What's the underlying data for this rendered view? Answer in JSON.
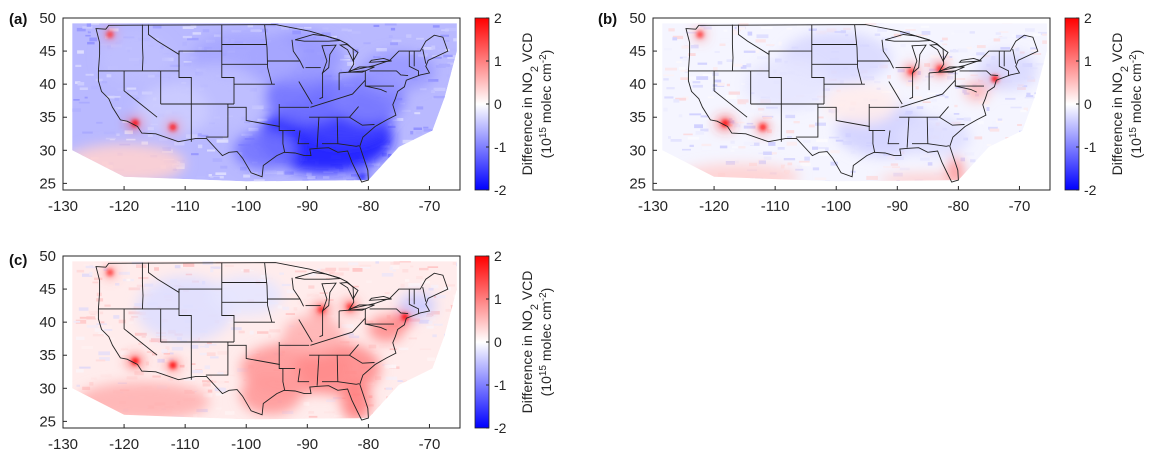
{
  "colorbar": {
    "ticks": [
      "2",
      "1",
      "0",
      "-1",
      "-2"
    ],
    "values": [
      2,
      1,
      0,
      -1,
      -2
    ],
    "range": [
      -2,
      2
    ],
    "label_line1": "Difference in NO",
    "label_line1_sub": "2",
    "label_line1_tail": " VCD",
    "label_line2_pre": "(10",
    "label_line2_sup": "15",
    "label_line2_mid": " molec cm",
    "label_line2_sup2": "-2",
    "label_line2_tail": ")",
    "colors": {
      "low": "#0000ff",
      "mid": "#ffffff",
      "high": "#ff0000"
    }
  },
  "map": {
    "xlim": [
      -130,
      -65
    ],
    "ylim": [
      24,
      50
    ],
    "x_ticks": [
      "-130",
      "-120",
      "-110",
      "-100",
      "-90",
      "-80",
      "-70"
    ],
    "x_tick_values": [
      -130,
      -120,
      -110,
      -100,
      -90,
      -80,
      -70
    ],
    "y_ticks": [
      "50",
      "45",
      "40",
      "35",
      "30",
      "25"
    ],
    "y_tick_values": [
      50,
      45,
      40,
      35,
      30,
      25
    ]
  },
  "panels": [
    {
      "label": "(a)",
      "bias": "negative"
    },
    {
      "label": "(b)",
      "bias": "mixed"
    },
    {
      "label": "(c)",
      "bias": "positive"
    }
  ]
}
